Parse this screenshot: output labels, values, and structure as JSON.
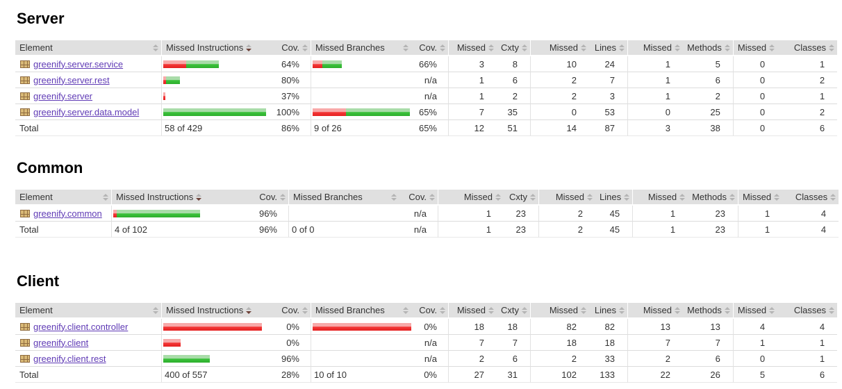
{
  "colors": {
    "link": "#5f3ab5",
    "header_bg": "#e0e0e0",
    "bar_red": "#e52020",
    "bar_green": "#2dae2d",
    "sort_active_arrow": "#6d4138"
  },
  "sorted_column": {
    "index": 1,
    "direction": "desc"
  },
  "columns": [
    {
      "label": "Element"
    },
    {
      "label": "Missed Instructions"
    },
    {
      "label": "Cov."
    },
    {
      "label": "Missed Branches"
    },
    {
      "label": "Cov."
    },
    {
      "label": "Missed"
    },
    {
      "label": "Cxty"
    },
    {
      "label": "Missed"
    },
    {
      "label": "Lines"
    },
    {
      "label": "Missed"
    },
    {
      "label": "Methods"
    },
    {
      "label": "Missed"
    },
    {
      "label": "Classes"
    }
  ],
  "sections": [
    {
      "title": "Server",
      "rows": [
        {
          "name": "greenify.server.service",
          "instr_bar": {
            "red": 33,
            "green": 47
          },
          "instr_cov": "64%",
          "branch_bar": {
            "red": 14,
            "green": 28
          },
          "branch_cov": "66%",
          "metrics": [
            "3",
            "8",
            "10",
            "24",
            "1",
            "5",
            "0",
            "1"
          ]
        },
        {
          "name": "greenify.server.rest",
          "instr_bar": {
            "red": 4,
            "green": 20
          },
          "instr_cov": "80%",
          "branch_bar": null,
          "branch_cov": "n/a",
          "metrics": [
            "1",
            "6",
            "2",
            "7",
            "1",
            "6",
            "0",
            "2"
          ]
        },
        {
          "name": "greenify.server",
          "instr_bar": {
            "red": 3,
            "green": 0
          },
          "instr_cov": "37%",
          "branch_bar": null,
          "branch_cov": "n/a",
          "metrics": [
            "1",
            "2",
            "2",
            "3",
            "1",
            "2",
            "0",
            "1"
          ]
        },
        {
          "name": "greenify.server.data.model",
          "instr_bar": {
            "red": 0,
            "green": 148
          },
          "instr_cov": "100%",
          "branch_bar": {
            "red": 48,
            "green": 92
          },
          "branch_cov": "65%",
          "metrics": [
            "7",
            "35",
            "0",
            "53",
            "0",
            "25",
            "0",
            "2"
          ]
        }
      ],
      "total": {
        "label": "Total",
        "instr": "58 of 429",
        "instr_cov": "86%",
        "branch": "9 of 26",
        "branch_cov": "65%",
        "metrics": [
          "12",
          "51",
          "14",
          "87",
          "3",
          "38",
          "0",
          "6"
        ]
      }
    },
    {
      "title": "Common",
      "rows": [
        {
          "name": "greenify.common",
          "instr_bar": {
            "red": 5,
            "green": 120
          },
          "instr_cov": "96%",
          "branch_bar": null,
          "branch_cov": "n/a",
          "metrics": [
            "1",
            "23",
            "2",
            "45",
            "1",
            "23",
            "1",
            "4"
          ]
        }
      ],
      "total": {
        "label": "Total",
        "instr": "4 of 102",
        "instr_cov": "96%",
        "branch": "0 of 0",
        "branch_cov": "n/a",
        "metrics": [
          "1",
          "23",
          "2",
          "45",
          "1",
          "23",
          "1",
          "4"
        ]
      }
    },
    {
      "title": "Client",
      "rows": [
        {
          "name": "greenify.client.controller",
          "instr_bar": {
            "red": 142,
            "green": 0
          },
          "instr_cov": "0%",
          "branch_bar": {
            "red": 142,
            "green": 0
          },
          "branch_cov": "0%",
          "metrics": [
            "18",
            "18",
            "82",
            "82",
            "13",
            "13",
            "4",
            "4"
          ]
        },
        {
          "name": "greenify.client",
          "instr_bar": {
            "red": 25,
            "green": 0
          },
          "instr_cov": "0%",
          "branch_bar": null,
          "branch_cov": "n/a",
          "metrics": [
            "7",
            "7",
            "18",
            "18",
            "7",
            "7",
            "1",
            "1"
          ]
        },
        {
          "name": "greenify.client.rest",
          "instr_bar": {
            "red": 0,
            "green": 67
          },
          "instr_cov": "96%",
          "branch_bar": null,
          "branch_cov": "n/a",
          "metrics": [
            "2",
            "6",
            "2",
            "33",
            "2",
            "6",
            "0",
            "1"
          ]
        }
      ],
      "total": {
        "label": "Total",
        "instr": "400 of 557",
        "instr_cov": "28%",
        "branch": "10 of 10",
        "branch_cov": "0%",
        "metrics": [
          "27",
          "31",
          "102",
          "133",
          "22",
          "26",
          "5",
          "6"
        ]
      }
    }
  ]
}
